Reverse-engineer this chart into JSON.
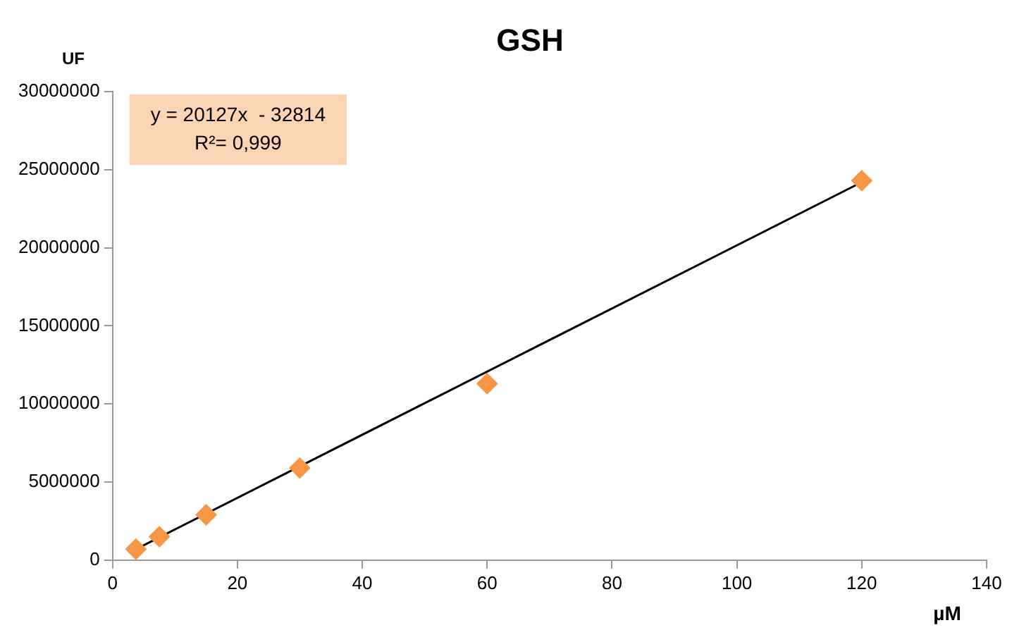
{
  "chart_data": {
    "type": "scatter",
    "title": "GSH",
    "xlabel": "µM",
    "ylabel": "UF",
    "x": [
      3.75,
      7.5,
      15,
      30,
      60,
      120
    ],
    "series": [
      {
        "color": "#f79646",
        "values": [
          700000,
          1500000,
          2900000,
          5900000,
          11300000,
          24300000
        ],
        "marker": "diamond"
      },
      {
        "type": "line",
        "color": "#000000",
        "x": [
          3.75,
          120
        ],
        "values": [
          700000,
          24200000
        ],
        "marker": "none"
      }
    ],
    "xlim": [
      0,
      140
    ],
    "xticks": [
      0,
      20,
      40,
      60,
      80,
      100,
      120,
      140
    ],
    "ylim": [
      0,
      30000000
    ],
    "yticks": [
      0,
      5000000,
      10000000,
      15000000,
      20000000,
      25000000,
      30000000
    ],
    "annotations": [
      "y = 20127x  - 32814",
      "R²= 0,999"
    ],
    "grid": false,
    "legend": false
  }
}
